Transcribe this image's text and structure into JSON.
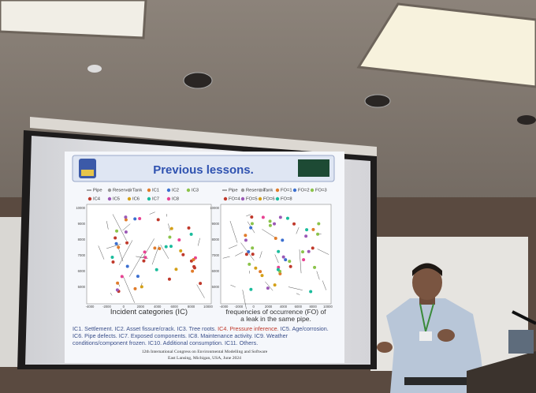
{
  "slide": {
    "title": "Previous lessons.",
    "legend_left": [
      "Pipe",
      "Reservoir",
      "Tank",
      "IC1",
      "IC2",
      "IC3",
      "IC4",
      "IC5",
      "IC6",
      "IC7",
      "IC8"
    ],
    "legend_right": [
      "Pipe",
      "Reservoir",
      "Tank",
      "FO=1",
      "FO=2",
      "FO=3",
      "FO=4",
      "FO=5",
      "FO=6",
      "FO=8"
    ],
    "y_ticks": [
      "10000",
      "9000",
      "8000",
      "7000",
      "6000",
      "5000"
    ],
    "x_ticks": [
      "-4000",
      "-2000",
      "0",
      "2000",
      "4000",
      "6000",
      "8000",
      "10000"
    ],
    "caption_left": "Incident categories (IC)",
    "caption_right": "frequencies of occurrence (FO) of a leak in the same pipe.",
    "notes_before": "IC1. Settlement. IC2. Asset fissure/crack. IC3. Tree roots. ",
    "notes_highlight": "IC4. Pressure inference.",
    "notes_after": " IC5. Age/corrosion. IC6. Pipe defects. IC7. Exposed components. IC8. Maintenance activity. IC9. Weather conditions/component frozen. IC10. Additional consumption. IC11. Others.",
    "footer_line1": "12th International Congress on Environmental Modelling and Software",
    "footer_line2": "East Lansing, Michigan, USA, June 2024"
  }
}
